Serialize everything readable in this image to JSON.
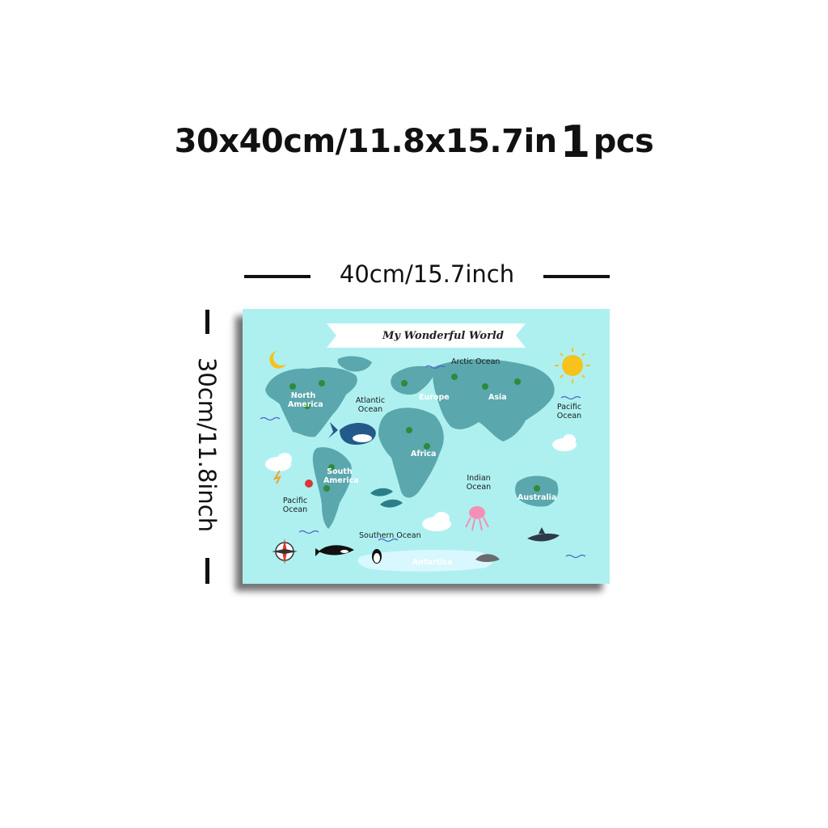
{
  "header": {
    "size_text": "30x40cm/11.8x15.7in",
    "quantity_number": "1",
    "quantity_unit": "pcs"
  },
  "dimensions": {
    "width_label": "40cm/15.7inch",
    "height_label": "30cm/11.8inch"
  },
  "poster": {
    "title": "My Wonderful World",
    "background_color": "#aef0f0",
    "labels": {
      "arctic_ocean": "Arctic Ocean",
      "north_america": "North America",
      "atlantic_ocean": "Atlantic Ocean",
      "europe": "Europe",
      "asia": "Asia",
      "pacific_ocean_east": "Pacific Ocean",
      "africa": "Africa",
      "south_america": "South America",
      "indian_ocean": "Indian Ocean",
      "australia": "Australia",
      "pacific_ocean_west": "Pacific Ocean",
      "southern_ocean": "Southern Ocean",
      "antarctica": "Antartica"
    },
    "icons": [
      "moon-icon",
      "sun-icon",
      "cloud-rain-icon",
      "cloud-snow-icon",
      "compass-icon",
      "whale-icon",
      "orca-icon",
      "shark-icon",
      "octopus-icon",
      "dolphin-icon",
      "penguin-icon",
      "crab-icon",
      "seal-icon"
    ]
  }
}
